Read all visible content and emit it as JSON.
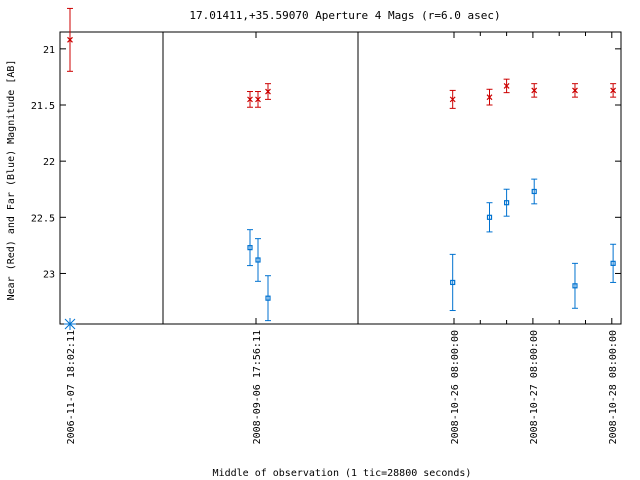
{
  "chart_data": {
    "type": "scatter",
    "title": "17.01411,+35.59070   Aperture 4 Mags (r=6.0 asec)",
    "xlabel": "Middle of observation (1 tic=28800 seconds)",
    "ylabel": "Near (Red) and Far (Blue) Magnitude [AB]",
    "y_inverted": true,
    "ylim": [
      23.45,
      20.85
    ],
    "yticks": [
      21,
      21.5,
      22,
      22.5,
      23
    ],
    "ytick_labels": [
      "21",
      "21.5",
      "22",
      "22.5",
      "23"
    ],
    "grid": false,
    "panels": [
      {
        "xticks": [
          {
            "label": "2006-11-07 18:02:11",
            "pos": 0
          }
        ],
        "red": [
          {
            "pos": 0,
            "mag": 20.92,
            "err": 0.28
          }
        ],
        "blue": [
          {
            "pos": 0,
            "mag": 23.45,
            "err": 0,
            "marker": "star"
          }
        ]
      },
      {
        "xticks": [
          {
            "label": "2008-09-06 17:56:11",
            "pos": 0
          }
        ],
        "red": [
          {
            "pos": -0.06,
            "mag": 21.45,
            "err": 0.07
          },
          {
            "pos": 0.02,
            "mag": 21.45,
            "err": 0.07
          },
          {
            "pos": 0.12,
            "mag": 21.38,
            "err": 0.07
          }
        ],
        "blue": [
          {
            "pos": -0.06,
            "mag": 22.77,
            "err": 0.16
          },
          {
            "pos": 0.02,
            "mag": 22.88,
            "err": 0.19
          },
          {
            "pos": 0.12,
            "mag": 23.22,
            "err": 0.2
          }
        ]
      },
      {
        "xticks": [
          {
            "label": "2008-10-26 08:00:00",
            "pos": 0
          },
          {
            "label": "2008-10-27 08:00:00",
            "pos": 3
          },
          {
            "label": "2008-10-28 08:00:00",
            "pos": 6
          }
        ],
        "red": [
          {
            "pos": -0.05,
            "mag": 21.45,
            "err": 0.08
          },
          {
            "pos": 1.35,
            "mag": 21.43,
            "err": 0.07
          },
          {
            "pos": 2.0,
            "mag": 21.33,
            "err": 0.06
          },
          {
            "pos": 3.05,
            "mag": 21.37,
            "err": 0.06
          },
          {
            "pos": 4.6,
            "mag": 21.37,
            "err": 0.06
          },
          {
            "pos": 6.05,
            "mag": 21.37,
            "err": 0.06
          }
        ],
        "blue": [
          {
            "pos": -0.05,
            "mag": 23.08,
            "err": 0.25
          },
          {
            "pos": 1.35,
            "mag": 22.5,
            "err": 0.13
          },
          {
            "pos": 2.0,
            "mag": 22.37,
            "err": 0.12
          },
          {
            "pos": 3.05,
            "mag": 22.27,
            "err": 0.11
          },
          {
            "pos": 4.6,
            "mag": 23.11,
            "err": 0.2
          },
          {
            "pos": 6.05,
            "mag": 22.91,
            "err": 0.17
          }
        ]
      }
    ],
    "colors": {
      "red": "#cc0000",
      "blue": "#0072d0",
      "frame": "#000000"
    }
  }
}
